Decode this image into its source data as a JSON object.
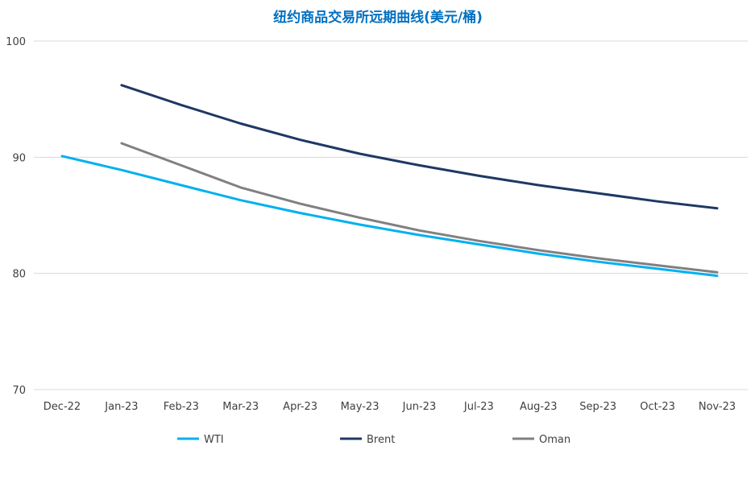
{
  "chart_data": {
    "type": "line",
    "title": "纽约商品交易所远期曲线(美元/桶)",
    "xlabel": "",
    "ylabel": "",
    "categories": [
      "Dec-22",
      "Jan-23",
      "Feb-23",
      "Mar-23",
      "Apr-23",
      "May-23",
      "Jun-23",
      "Jul-23",
      "Aug-23",
      "Sep-23",
      "Oct-23",
      "Nov-23"
    ],
    "ylim": [
      70,
      100
    ],
    "yticks": [
      70,
      80,
      90,
      100
    ],
    "grid": true,
    "legend_position": "bottom",
    "series": [
      {
        "name": "WTI",
        "color": "#00B0F0",
        "values": [
          90.1,
          88.9,
          87.6,
          86.3,
          85.2,
          84.2,
          83.3,
          82.5,
          81.7,
          81.0,
          80.4,
          79.8
        ]
      },
      {
        "name": "Brent",
        "color": "#1F3864",
        "values": [
          null,
          96.2,
          94.5,
          92.9,
          91.5,
          90.3,
          89.3,
          88.4,
          87.6,
          86.9,
          86.2,
          85.6
        ]
      },
      {
        "name": "Oman",
        "color": "#808080",
        "values": [
          null,
          91.2,
          89.3,
          87.4,
          86.0,
          84.8,
          83.7,
          82.8,
          82.0,
          81.3,
          80.7,
          80.1
        ]
      }
    ]
  },
  "colors": {
    "title": "#0070C0",
    "gridline": "#D9D9D9",
    "axis_text": "#404040"
  }
}
